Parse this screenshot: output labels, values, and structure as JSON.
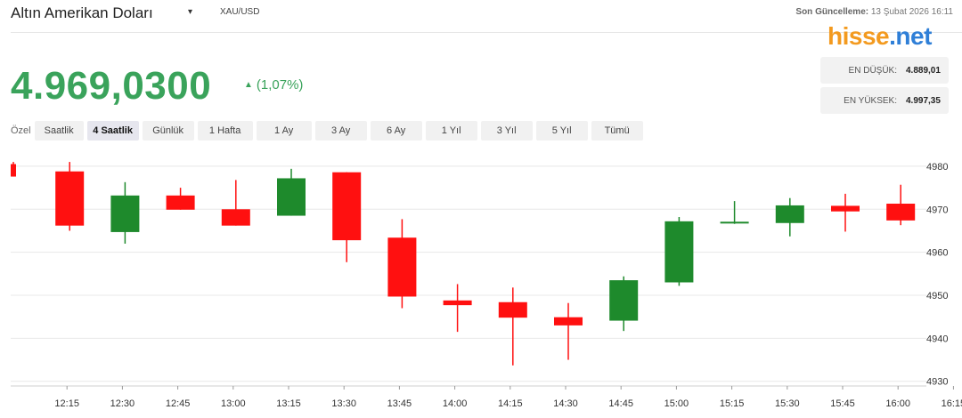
{
  "header": {
    "title": "Altın Amerikan Doları",
    "dropdown_glyph": "▾",
    "symbol": "XAU/USD",
    "updated_label": "Son Güncelleme:",
    "updated_value": "13 Şubat 2026 16:11"
  },
  "logo": {
    "part1": "hisse",
    "part2": ".net"
  },
  "quote": {
    "price": "4.969,0300",
    "change_icon": "up-triangle-icon",
    "change_glyph": "▲",
    "change": "(1,07%)"
  },
  "stats": {
    "low_label": "EN DÜŞÜK:",
    "low_value": "4.889,01",
    "high_label": "EN YÜKSEK:",
    "high_value": "4.997,35"
  },
  "timeframes": {
    "custom_label": "Özel",
    "buttons": [
      "Saatlik",
      "4 Saatlik",
      "Günlük",
      "1 Hafta",
      "1 Ay",
      "3 Ay",
      "6 Ay",
      "1 Yıl",
      "3 Yıl",
      "5 Yıl",
      "Tümü"
    ],
    "active": "4 Saatlik"
  },
  "colors": {
    "up": "#1e8a2c",
    "down": "#ff1010",
    "price": "#3aa35b",
    "grid": "#e8e8e8"
  },
  "chart_data": {
    "type": "candlestick",
    "x": [
      "12:00",
      "12:15",
      "12:30",
      "12:45",
      "13:00",
      "13:15",
      "13:30",
      "13:45",
      "14:00",
      "14:15",
      "14:30",
      "14:45",
      "15:00",
      "15:15",
      "15:30",
      "15:45",
      "16:00"
    ],
    "x_tick_labels": [
      "12:15",
      "12:30",
      "12:45",
      "13:00",
      "13:15",
      "13:30",
      "13:45",
      "14:00",
      "14:15",
      "14:30",
      "14:45",
      "15:00",
      "15:15",
      "15:30",
      "15:45",
      "16:00",
      "16:15"
    ],
    "y_ticks": [
      4930,
      4940,
      4950,
      4960,
      4970,
      4980
    ],
    "ylim": [
      4928.5,
      4983.5
    ],
    "y_axis_position": "right",
    "grid": true,
    "candles": [
      {
        "o": 4980.5,
        "h": 4981.0,
        "c": 4977.6,
        "l": 4977.6
      },
      {
        "o": 4978.8,
        "h": 4981.0,
        "c": 4966.2,
        "l": 4965.0
      },
      {
        "o": 4964.7,
        "h": 4976.3,
        "c": 4973.2,
        "l": 4962.0
      },
      {
        "o": 4973.2,
        "h": 4975.0,
        "c": 4969.9,
        "l": 4969.9
      },
      {
        "o": 4970.0,
        "h": 4976.8,
        "c": 4966.2,
        "l": 4966.2
      },
      {
        "o": 4968.5,
        "h": 4979.4,
        "c": 4977.2,
        "l": 4968.5
      },
      {
        "o": 4978.6,
        "h": 4978.6,
        "c": 4962.8,
        "l": 4957.7
      },
      {
        "o": 4963.4,
        "h": 4967.7,
        "c": 4949.7,
        "l": 4947.0
      },
      {
        "o": 4948.8,
        "h": 4952.6,
        "c": 4947.7,
        "l": 4941.5
      },
      {
        "o": 4948.4,
        "h": 4951.8,
        "c": 4944.8,
        "l": 4933.7
      },
      {
        "o": 4944.9,
        "h": 4948.2,
        "c": 4943.0,
        "l": 4935.0
      },
      {
        "o": 4944.1,
        "h": 4954.4,
        "c": 4953.5,
        "l": 4941.7
      },
      {
        "o": 4953.0,
        "h": 4968.2,
        "c": 4967.2,
        "l": 4952.2
      },
      {
        "o": 4966.9,
        "h": 4971.9,
        "c": 4967.1,
        "l": 4966.6
      },
      {
        "o": 4966.8,
        "h": 4972.6,
        "c": 4970.9,
        "l": 4963.7
      },
      {
        "o": 4970.8,
        "h": 4973.6,
        "c": 4969.5,
        "l": 4964.8
      },
      {
        "o": 4971.3,
        "h": 4975.7,
        "c": 4967.4,
        "l": 4966.3
      }
    ]
  }
}
